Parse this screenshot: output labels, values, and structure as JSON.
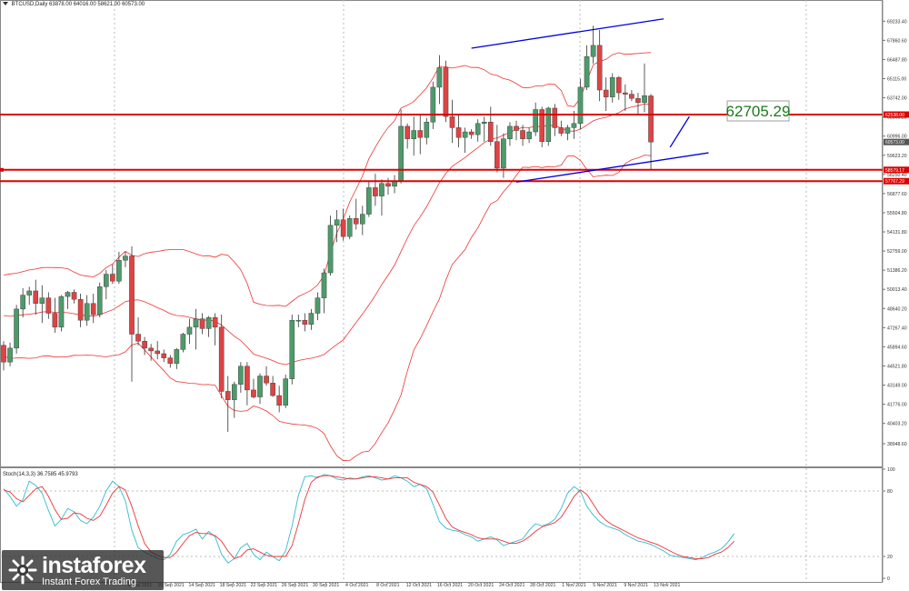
{
  "header": {
    "symbol_line": "BTCUSD,Daily",
    "ohlc_line": "63878.00 64016.00 58621.00 60573.00",
    "oscillator_line": "Stoch(14,3,3) 36.7585 45.9793"
  },
  "logo": {
    "brand": "instaforex",
    "tagline": "Instant Forex Trading",
    "icon": "instaforex-globe-icon"
  },
  "chart_data": {
    "type": "candlestick",
    "price_axis": {
      "min": 38948.6,
      "max": 70100,
      "ticks": [
        69233.4,
        67860.6,
        66487.8,
        65115.0,
        63742.0,
        62369.2,
        60996.0,
        59623.2,
        58250.4,
        56877.6,
        55504.8,
        54131.8,
        52759.0,
        51386.2,
        50013.4,
        48640.2,
        47267.4,
        45894.6,
        44521.8,
        43149.0,
        41776.0,
        40403.2,
        38948.6
      ],
      "tick_labels": [
        "69233.40",
        "67860.60",
        "66487.80",
        "65115.00",
        "63742.00",
        "62369.20",
        "60996.00",
        "59623.20",
        "58250.40",
        "56877.60",
        "55504.80",
        "54131.80",
        "52759.00",
        "51386.20",
        "50013.40",
        "48640.20",
        "47267.40",
        "45894.60",
        "44521.80",
        "43149.00",
        "41776.00",
        "40403.20",
        "38948.60"
      ]
    },
    "date_labels": [
      "6 Sep 2021",
      "10 Sep 2021",
      "14 Sep 2021",
      "18 Sep 2021",
      "22 Sep 2021",
      "26 Sep 2021",
      "30 Sep 2021",
      "4 Oct 2021",
      "8 Oct 2021",
      "12 Oct 2021",
      "16 Oct 2021",
      "20 Oct 2021",
      "24 Oct 2021",
      "28 Oct 2021",
      "1 Nov 2021",
      "5 Nov 2021",
      "9 Nov 2021",
      "13 Nov 2021"
    ],
    "candles": [
      [
        46000,
        46300,
        44200,
        44800
      ],
      [
        44800,
        46200,
        44500,
        45800
      ],
      [
        45800,
        48900,
        45400,
        48600
      ],
      [
        48600,
        50100,
        48000,
        49600
      ],
      [
        49600,
        50200,
        48900,
        49900
      ],
      [
        49900,
        50700,
        48200,
        49000
      ],
      [
        49000,
        50300,
        47600,
        49400
      ],
      [
        49400,
        49800,
        47900,
        48300
      ],
      [
        48300,
        49400,
        46900,
        47300
      ],
      [
        47300,
        49600,
        47000,
        49500
      ],
      [
        49500,
        49900,
        48600,
        49800
      ],
      [
        49800,
        50000,
        49000,
        49300
      ],
      [
        49300,
        49700,
        47300,
        47800
      ],
      [
        47800,
        49600,
        47400,
        49000
      ],
      [
        49000,
        49700,
        47600,
        48200
      ],
      [
        48200,
        50500,
        48000,
        50200
      ],
      [
        50200,
        51400,
        49300,
        51100
      ],
      [
        51100,
        51800,
        50400,
        50600
      ],
      [
        50600,
        52700,
        50400,
        52100
      ],
      [
        52100,
        52700,
        51600,
        52400
      ],
      [
        52400,
        53100,
        43400,
        46800
      ],
      [
        46800,
        48000,
        46000,
        46300
      ],
      [
        46300,
        46600,
        45300,
        45800
      ],
      [
        45800,
        46100,
        44900,
        45600
      ],
      [
        45600,
        46300,
        45000,
        45400
      ],
      [
        45400,
        45700,
        44800,
        45100
      ],
      [
        45100,
        45300,
        44400,
        44700
      ],
      [
        44700,
        45800,
        44300,
        45700
      ],
      [
        45700,
        46900,
        45500,
        46800
      ],
      [
        46800,
        47900,
        46100,
        47300
      ],
      [
        47300,
        48600,
        45700,
        47900
      ],
      [
        47900,
        48300,
        46800,
        47200
      ],
      [
        47200,
        48100,
        46600,
        48000
      ],
      [
        48000,
        48300,
        46000,
        47300
      ],
      [
        47300,
        48200,
        42200,
        42700
      ],
      [
        42700,
        43800,
        39800,
        42100
      ],
      [
        42100,
        43400,
        40800,
        43200
      ],
      [
        43200,
        44800,
        42600,
        44500
      ],
      [
        44500,
        44800,
        41700,
        42800
      ],
      [
        42800,
        43600,
        42200,
        42300
      ],
      [
        42300,
        44000,
        41800,
        43800
      ],
      [
        43800,
        44500,
        43100,
        43300
      ],
      [
        43300,
        43800,
        42300,
        42400
      ],
      [
        42400,
        43100,
        41200,
        41700
      ],
      [
        41700,
        43900,
        41500,
        43600
      ],
      [
        43600,
        48200,
        43200,
        47800
      ],
      [
        47800,
        48200,
        47300,
        47800
      ],
      [
        47800,
        48300,
        47000,
        47500
      ],
      [
        47500,
        48600,
        47100,
        48300
      ],
      [
        48300,
        49800,
        47800,
        49400
      ],
      [
        49400,
        51500,
        48300,
        51200
      ],
      [
        51200,
        55300,
        51000,
        54600
      ],
      [
        54600,
        55700,
        53400,
        55000
      ],
      [
        55000,
        55800,
        53500,
        53800
      ],
      [
        53800,
        55300,
        53600,
        55100
      ],
      [
        55100,
        56500,
        54300,
        54700
      ],
      [
        54700,
        56000,
        53900,
        55400
      ],
      [
        55400,
        57800,
        55200,
        57300
      ],
      [
        57300,
        58300,
        56000,
        56700
      ],
      [
        56700,
        57900,
        55300,
        57600
      ],
      [
        57600,
        58000,
        56800,
        57400
      ],
      [
        57400,
        58200,
        56900,
        57800
      ],
      [
        57800,
        62900,
        57600,
        61700
      ],
      [
        61700,
        61900,
        60100,
        60800
      ],
      [
        60800,
        62400,
        59600,
        61400
      ],
      [
        61400,
        62600,
        59700,
        60900
      ],
      [
        60900,
        62300,
        60400,
        62000
      ],
      [
        62000,
        64900,
        61500,
        64500
      ],
      [
        64500,
        66800,
        63300,
        65900
      ],
      [
        65900,
        66400,
        62000,
        62400
      ],
      [
        62400,
        63600,
        60500,
        61600
      ],
      [
        61600,
        62500,
        60200,
        60900
      ],
      [
        60900,
        61600,
        59800,
        61300
      ],
      [
        61300,
        61500,
        60800,
        61100
      ],
      [
        61100,
        62200,
        60600,
        61900
      ],
      [
        61900,
        62400,
        60600,
        62000
      ],
      [
        62000,
        63100,
        60300,
        60600
      ],
      [
        60600,
        61800,
        58400,
        58700
      ],
      [
        58700,
        61200,
        58000,
        60800
      ],
      [
        60800,
        62000,
        60300,
        61700
      ],
      [
        61700,
        62100,
        60700,
        61400
      ],
      [
        61400,
        61800,
        60300,
        60800
      ],
      [
        60800,
        61600,
        60500,
        61300
      ],
      [
        61300,
        63400,
        61000,
        62900
      ],
      [
        62900,
        63100,
        60200,
        60600
      ],
      [
        60600,
        63100,
        60300,
        63000
      ],
      [
        63000,
        63300,
        61000,
        61600
      ],
      [
        61600,
        62100,
        61000,
        61200
      ],
      [
        61200,
        61800,
        60700,
        61600
      ],
      [
        61600,
        62800,
        60800,
        61900
      ],
      [
        61900,
        65100,
        61500,
        64500
      ],
      [
        64500,
        67500,
        64300,
        66700
      ],
      [
        66700,
        68900,
        66200,
        67500
      ],
      [
        67500,
        68600,
        63500,
        64300
      ],
      [
        64300,
        65200,
        62800,
        63800
      ],
      [
        63800,
        65500,
        63400,
        65200
      ],
      [
        65200,
        65300,
        63600,
        64100
      ],
      [
        64100,
        64700,
        62800,
        64000
      ],
      [
        64000,
        64300,
        63500,
        63700
      ],
      [
        63700,
        64100,
        62500,
        63400
      ],
      [
        63400,
        66200,
        62700,
        63900
      ],
      [
        63878,
        64016,
        58621,
        60573
      ]
    ],
    "horizontal_levels": [
      {
        "label": "62538.00",
        "value": 62538,
        "color": "#dd0000"
      },
      {
        "label": "58579.17",
        "value": 58579,
        "color": "#dd0000"
      },
      {
        "label": "57767.29",
        "value": 57767,
        "color": "#dd0000"
      }
    ],
    "current_price_label": "60573.00",
    "annotation": {
      "text": "62705.29",
      "color": "#1a7a1a"
    },
    "trendlines": [
      {
        "name": "upper-channel",
        "color": "#0000dd",
        "from": [
          73,
          67300
        ],
        "to": [
          103,
          69400
        ]
      },
      {
        "name": "lower-channel",
        "color": "#0000dd",
        "from": [
          80,
          57700
        ],
        "to": [
          110,
          59800
        ]
      },
      {
        "name": "projection",
        "color": "#0000dd",
        "from": [
          104,
          60200
        ],
        "to": [
          107,
          62400
        ]
      }
    ],
    "bollinger_color": "#ee3333",
    "candle_up_color": "#4e9a6b",
    "candle_down_color": "#dd4444",
    "stochastic": {
      "levels": [
        100,
        80,
        20,
        0
      ],
      "k_color": "#33bbcc",
      "d_color": "#ee3333",
      "k": [
        82,
        75,
        66,
        72,
        89,
        85,
        78,
        62,
        48,
        54,
        64,
        61,
        53,
        50,
        56,
        66,
        80,
        89,
        84,
        71,
        44,
        28,
        24,
        21,
        18,
        17,
        22,
        34,
        40,
        42,
        45,
        36,
        43,
        38,
        22,
        14,
        18,
        28,
        32,
        22,
        17,
        24,
        20,
        16,
        25,
        48,
        76,
        93,
        94,
        92,
        95,
        94,
        91,
        90,
        92,
        91,
        93,
        94,
        92,
        90,
        91,
        94,
        92,
        89,
        84,
        86,
        82,
        68,
        52,
        46,
        44,
        43,
        40,
        38,
        34,
        36,
        38,
        35,
        30,
        32,
        34,
        36,
        44,
        50,
        48,
        50,
        54,
        64,
        78,
        84,
        80,
        66,
        58,
        52,
        48,
        46,
        44,
        40,
        37,
        34,
        33,
        31,
        28,
        25,
        21,
        20,
        19,
        18,
        17,
        19,
        22,
        24,
        27,
        33,
        41
      ],
      "d": [
        81,
        79,
        73,
        70,
        76,
        82,
        84,
        75,
        63,
        54,
        55,
        60,
        59,
        55,
        53,
        57,
        67,
        78,
        84,
        81,
        66,
        48,
        32,
        24,
        21,
        19,
        19,
        24,
        32,
        39,
        42,
        41,
        41,
        39,
        34,
        25,
        18,
        20,
        26,
        27,
        24,
        21,
        20,
        20,
        20,
        30,
        50,
        72,
        88,
        93,
        94,
        94,
        93,
        92,
        91,
        91,
        92,
        93,
        93,
        92,
        91,
        92,
        92,
        92,
        88,
        86,
        84,
        79,
        67,
        55,
        47,
        44,
        42,
        40,
        37,
        36,
        36,
        36,
        34,
        32,
        32,
        34,
        38,
        43,
        47,
        49,
        51,
        56,
        65,
        75,
        81,
        77,
        68,
        59,
        53,
        49,
        46,
        43,
        40,
        37,
        35,
        33,
        31,
        28,
        25,
        22,
        20,
        19,
        18,
        18,
        19,
        22,
        24,
        28,
        34
      ]
    }
  }
}
